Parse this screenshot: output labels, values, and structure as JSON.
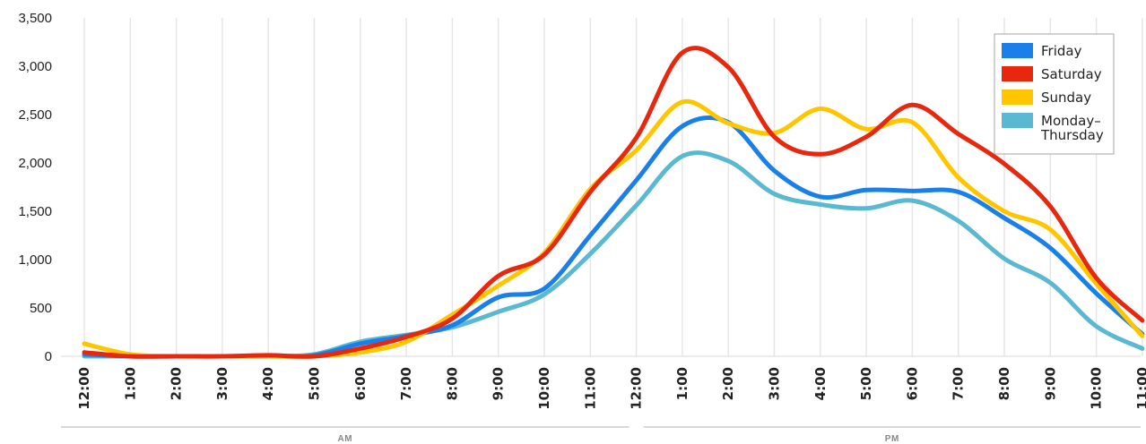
{
  "chart_data": {
    "type": "line",
    "title": "",
    "xlabel": "",
    "ylabel": "",
    "ylim": [
      0,
      3500
    ],
    "yticks": [
      "0",
      "500",
      "1,000",
      "1,500",
      "2,000",
      "2,500",
      "3,000",
      "3,500"
    ],
    "ytick_values": [
      0,
      500,
      1000,
      1500,
      2000,
      2500,
      3000,
      3500
    ],
    "categories": [
      "12:00",
      "1:00",
      "2:00",
      "3:00",
      "4:00",
      "5:00",
      "6:00",
      "7:00",
      "8:00",
      "9:00",
      "10:00",
      "11:00",
      "12:00",
      "1:00",
      "2:00",
      "3:00",
      "4:00",
      "5:00",
      "6:00",
      "7:00",
      "8:00",
      "9:00",
      "10:00",
      "11:00"
    ],
    "x_groups": [
      {
        "label": "AM",
        "start": 0,
        "end": 11
      },
      {
        "label": "PM",
        "start": 12,
        "end": 23
      }
    ],
    "grid": "vertical",
    "legend_position": "top-right",
    "series": [
      {
        "name": "Friday",
        "color": "#1a7fe8",
        "values": [
          20,
          0,
          0,
          0,
          0,
          10,
          130,
          210,
          320,
          610,
          700,
          1250,
          1820,
          2380,
          2420,
          1920,
          1650,
          1720,
          1710,
          1700,
          1430,
          1120,
          650,
          230
        ]
      },
      {
        "name": "Saturday",
        "color": "#e8280e",
        "values": [
          40,
          0,
          0,
          0,
          10,
          0,
          80,
          200,
          390,
          830,
          1050,
          1700,
          2260,
          3140,
          2990,
          2270,
          2090,
          2270,
          2600,
          2300,
          1990,
          1550,
          810,
          370
        ]
      },
      {
        "name": "Sunday",
        "color": "#ffc600",
        "values": [
          130,
          20,
          0,
          0,
          0,
          0,
          40,
          150,
          430,
          730,
          1070,
          1730,
          2130,
          2630,
          2410,
          2310,
          2560,
          2350,
          2420,
          1850,
          1500,
          1310,
          750,
          210
        ]
      },
      {
        "name": "Monday–\nThursday",
        "color": "#5bb8d1",
        "values": [
          0,
          0,
          0,
          0,
          0,
          20,
          150,
          220,
          300,
          460,
          640,
          1060,
          1560,
          2070,
          2020,
          1680,
          1570,
          1530,
          1610,
          1400,
          1010,
          760,
          310,
          80
        ]
      }
    ]
  }
}
